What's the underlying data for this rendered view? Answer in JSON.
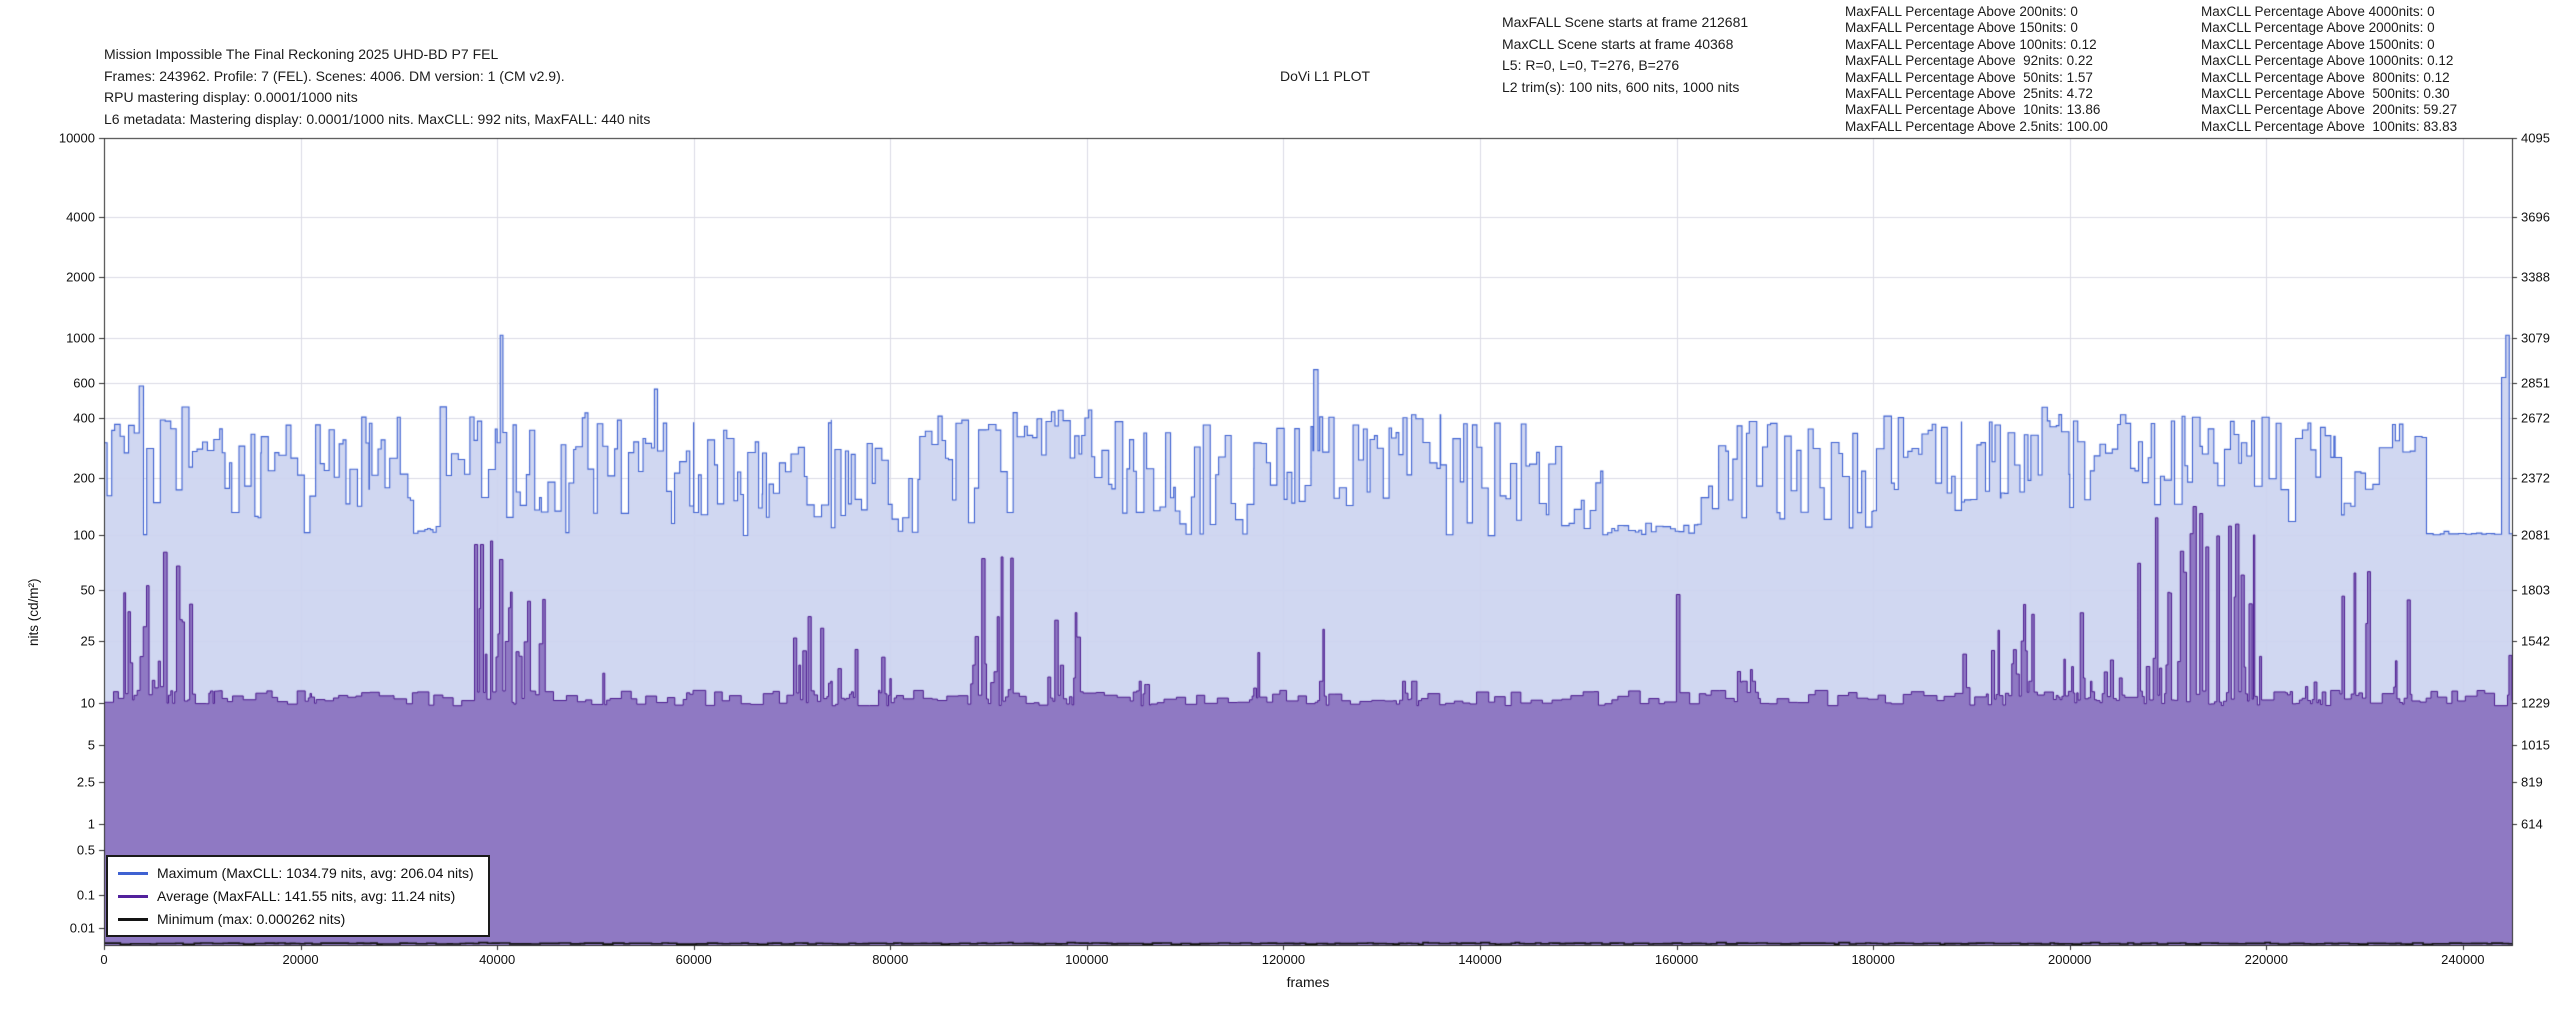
{
  "header": {
    "title_lines": [
      "Mission Impossible The Final Reckoning 2025 UHD-BD P7 FEL",
      "Frames: 243962. Profile: 7 (FEL). Scenes: 4006. DM version: 1 (CM v2.9).",
      "RPU mastering display: 0.0001/1000 nits",
      "L6 metadata: Mastering display: 0.0001/1000 nits. MaxCLL: 992 nits, MaxFALL: 440 nits"
    ],
    "plot_label": "DoVi L1 PLOT",
    "scene_info_lines": [
      "MaxFALL Scene starts at frame 212681",
      "MaxCLL Scene starts at frame 40368",
      "L5: R=0, L=0, T=276, B=276",
      "L2 trim(s): 100 nits, 600 nits, 1000 nits"
    ],
    "maxfall_lines": [
      "MaxFALL Percentage Above 200nits: 0",
      "MaxFALL Percentage Above 150nits: 0",
      "MaxFALL Percentage Above 100nits: 0.12",
      "MaxFALL Percentage Above  92nits: 0.22",
      "MaxFALL Percentage Above  50nits: 1.57",
      "MaxFALL Percentage Above  25nits: 4.72",
      "MaxFALL Percentage Above  10nits: 13.86",
      "MaxFALL Percentage Above 2.5nits: 100.00"
    ],
    "maxcll_lines": [
      "MaxCLL Percentage Above 4000nits: 0",
      "MaxCLL Percentage Above 2000nits: 0",
      "MaxCLL Percentage Above 1500nits: 0",
      "MaxCLL Percentage Above 1000nits: 0.12",
      "MaxCLL Percentage Above  800nits: 0.12",
      "MaxCLL Percentage Above  500nits: 0.30",
      "MaxCLL Percentage Above  200nits: 59.27",
      "MaxCLL Percentage Above  100nits: 83.83"
    ]
  },
  "legend": {
    "items": [
      {
        "label": "Maximum (MaxCLL: 1034.79 nits, avg: 206.04 nits)",
        "color": "#3f62d2"
      },
      {
        "label": "Average (MaxFALL: 141.55 nits, avg: 11.24 nits)",
        "color": "#52219c"
      },
      {
        "label": "Minimum (max: 0.000262 nits)",
        "color": "#141414"
      }
    ]
  },
  "chart_data": {
    "type": "area",
    "title": "DoVi L1 PLOT",
    "xlabel": "frames",
    "ylabel": "nits (cd/m²)",
    "y_scale": "pq",
    "grid": true,
    "legend_position": "lower-left",
    "total_frames": 243962,
    "x_range": [
      0,
      245000
    ],
    "x_ticks": [
      0,
      20000,
      40000,
      60000,
      80000,
      100000,
      120000,
      140000,
      160000,
      180000,
      200000,
      220000,
      240000
    ],
    "y_ticks_left": [
      10000,
      4000,
      2000,
      1000,
      600,
      400,
      200,
      100,
      50,
      25,
      10,
      5,
      2.5,
      1,
      0.5,
      0.1,
      0.01
    ],
    "y_ticks_right_pq": [
      4095,
      3696,
      3388,
      3079,
      2851,
      2672,
      2372,
      2081,
      1803,
      1542,
      1229,
      1015,
      819,
      614
    ],
    "summary": {
      "maxcll_nits": 1034.79,
      "maxcll_avg_nits": 206.04,
      "maxcll_frame": 40368,
      "maxfall_nits": 141.55,
      "maxfall_avg_nits": 11.24,
      "maxfall_frame": 212681,
      "minimum_max_nits": 0.000262
    },
    "colors": {
      "grid": "#dcdce6",
      "spine": "#2b2b2b",
      "background": "#ffffff"
    },
    "series": [
      {
        "name": "Maximum",
        "line_color": "#3f62d2",
        "fill_color": "rgba(204,212,240,0.93)",
        "envelope": [
          [
            0,
            2500,
            160,
            380
          ],
          [
            2500,
            9000,
            95,
            460
          ],
          [
            9000,
            13000,
            180,
            360
          ],
          [
            13000,
            16000,
            120,
            420
          ],
          [
            16000,
            22000,
            100,
            440
          ],
          [
            22000,
            27000,
            140,
            420
          ],
          [
            27000,
            31500,
            150,
            460
          ],
          [
            31500,
            34200,
            102,
            112
          ],
          [
            34200,
            40000,
            150,
            460
          ],
          [
            40000,
            44500,
            120,
            460
          ],
          [
            44500,
            48000,
            100,
            300
          ],
          [
            48000,
            56000,
            130,
            430
          ],
          [
            56000,
            60000,
            110,
            380
          ],
          [
            60000,
            67000,
            100,
            360
          ],
          [
            67000,
            74000,
            120,
            420
          ],
          [
            74000,
            83000,
            100,
            300
          ],
          [
            83000,
            90000,
            110,
            420
          ],
          [
            90000,
            95000,
            130,
            430
          ],
          [
            95000,
            100500,
            260,
            445
          ],
          [
            100500,
            109000,
            130,
            420
          ],
          [
            109000,
            117000,
            100,
            400
          ],
          [
            117000,
            123000,
            150,
            430
          ],
          [
            123000,
            124000,
            200,
            430
          ],
          [
            124000,
            131000,
            140,
            440
          ],
          [
            131000,
            136000,
            200,
            420
          ],
          [
            136000,
            147000,
            100,
            380
          ],
          [
            147000,
            152500,
            110,
            350
          ],
          [
            152500,
            162500,
            100,
            116
          ],
          [
            162500,
            171000,
            120,
            400
          ],
          [
            171000,
            180000,
            110,
            380
          ],
          [
            180000,
            189000,
            120,
            420
          ],
          [
            189000,
            193000,
            150,
            440
          ],
          [
            193000,
            200000,
            160,
            460
          ],
          [
            200000,
            207000,
            120,
            420
          ],
          [
            207000,
            213500,
            140,
            450
          ],
          [
            213500,
            221500,
            180,
            470
          ],
          [
            221500,
            227000,
            110,
            420
          ],
          [
            227000,
            231500,
            130,
            280
          ],
          [
            231500,
            236300,
            240,
            440
          ],
          [
            236300,
            245000,
            100,
            102
          ]
        ],
        "spikes": [
          [
            3800,
            580
          ],
          [
            40368,
            1034.79
          ],
          [
            56100,
            560
          ],
          [
            123300,
            700
          ],
          [
            244150,
            640
          ],
          [
            244500,
            1035
          ]
        ]
      },
      {
        "name": "Average",
        "line_color": "#4c1a8f",
        "fill_color": "rgba(139,116,192,0.95)",
        "base": [
          9.6,
          12.2
        ],
        "clusters": [
          [
            1800,
            9200,
            90,
            0.5,
            14
          ],
          [
            10200,
            11800,
            18,
            0.3,
            11
          ],
          [
            20000,
            21500,
            16,
            0.25,
            11
          ],
          [
            28400,
            29400,
            38,
            0.3,
            11
          ],
          [
            37200,
            44800,
            100,
            0.75,
            16
          ],
          [
            50300,
            51200,
            60,
            0.3,
            11
          ],
          [
            58500,
            59800,
            35,
            0.3,
            11
          ],
          [
            69500,
            76500,
            40,
            0.45,
            13
          ],
          [
            78500,
            80500,
            28,
            0.3,
            12
          ],
          [
            87500,
            92500,
            90,
            0.5,
            13
          ],
          [
            95500,
            99500,
            38,
            0.4,
            12
          ],
          [
            104000,
            106500,
            30,
            0.3,
            12
          ],
          [
            116500,
            117500,
            75,
            0.3,
            11
          ],
          [
            122500,
            124500,
            30,
            0.4,
            12
          ],
          [
            130500,
            134000,
            13,
            0.5,
            12
          ],
          [
            159300,
            160300,
            60,
            0.3,
            11
          ],
          [
            165500,
            168500,
            28,
            0.35,
            12
          ],
          [
            188500,
            189500,
            97,
            0.35,
            12
          ],
          [
            190500,
            196500,
            45,
            0.45,
            13
          ],
          [
            198000,
            205500,
            45,
            0.4,
            13
          ],
          [
            206500,
            219500,
            141,
            0.6,
            15
          ],
          [
            221500,
            226000,
            45,
            0.4,
            13
          ],
          [
            226800,
            230500,
            90,
            0.45,
            13
          ],
          [
            232000,
            234800,
            60,
            0.35,
            12
          ],
          [
            243600,
            245000,
            60,
            0.5,
            12
          ]
        ],
        "spikes": [
          [
            212681,
            141.55
          ]
        ]
      },
      {
        "name": "Minimum",
        "line_color": "#141414",
        "base": [
          4e-05,
          0.0002
        ],
        "max_nits": 0.000262
      }
    ]
  }
}
